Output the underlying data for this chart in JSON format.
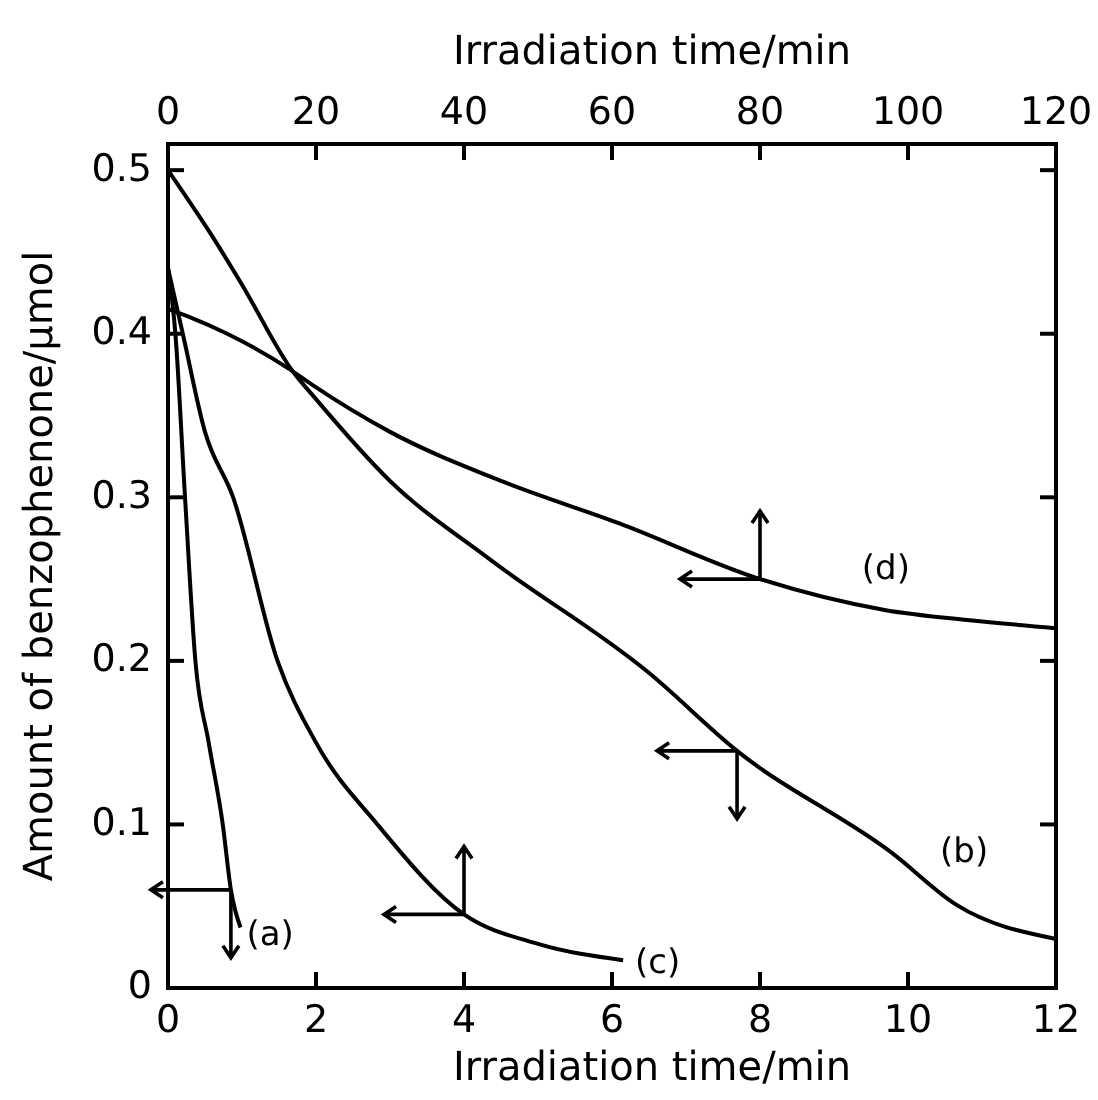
{
  "chart_data": {
    "type": "line",
    "xlabel": "Irradiation time/min",
    "x2label": "Irradiation time/min",
    "ylabel": "Amount of benzophenone/μmol",
    "xlim": [
      0,
      12
    ],
    "xticks": [
      0,
      2,
      4,
      6,
      8,
      10,
      12
    ],
    "x2lim": [
      0,
      120
    ],
    "x2ticks": [
      0,
      20,
      40,
      60,
      80,
      100,
      120
    ],
    "ylim": [
      0,
      0.516
    ],
    "yticks": [
      0,
      0.1,
      0.2,
      0.3,
      0.4,
      0.5
    ],
    "grid": false,
    "marker": "none",
    "line_style": "solid",
    "series": [
      {
        "name": "(a)",
        "color": "#000000",
        "x": [
          0,
          0.1,
          0.23,
          0.37,
          0.55,
          0.74,
          0.85,
          0.98
        ],
        "values": [
          0.44,
          0.4,
          0.3,
          0.2,
          0.15,
          0.1,
          0.06,
          0.037
        ]
      },
      {
        "name": "(b)",
        "color": "#000000",
        "x": [
          0,
          0.55,
          1.0,
          1.67,
          2,
          3,
          4.35,
          6.49,
          7.69,
          9.8,
          10.65,
          12
        ],
        "values": [
          0.5,
          0.463,
          0.43,
          0.378,
          0.36,
          0.31,
          0.262,
          0.193,
          0.145,
          0.082,
          0.051,
          0.03
        ]
      },
      {
        "name": "(c)",
        "color": "#000000",
        "axis": "x2",
        "x": [
          0,
          2,
          5,
          8.8,
          14.8,
          20,
          28.3,
          40,
          50,
          61.5
        ],
        "values": [
          0.44,
          0.4,
          0.34,
          0.3,
          0.2,
          0.15,
          0.1,
          0.045,
          0.027,
          0.017
        ]
      },
      {
        "name": "(d)",
        "color": "#000000",
        "axis": "x2",
        "x": [
          0,
          3,
          8,
          16.2,
          19.4,
          30,
          45,
          61,
          80,
          97,
          108,
          120
        ],
        "values": [
          0.415,
          0.41,
          0.4,
          0.379,
          0.369,
          0.34,
          0.31,
          0.284,
          0.25,
          0.231,
          0.225,
          0.22
        ]
      }
    ]
  }
}
